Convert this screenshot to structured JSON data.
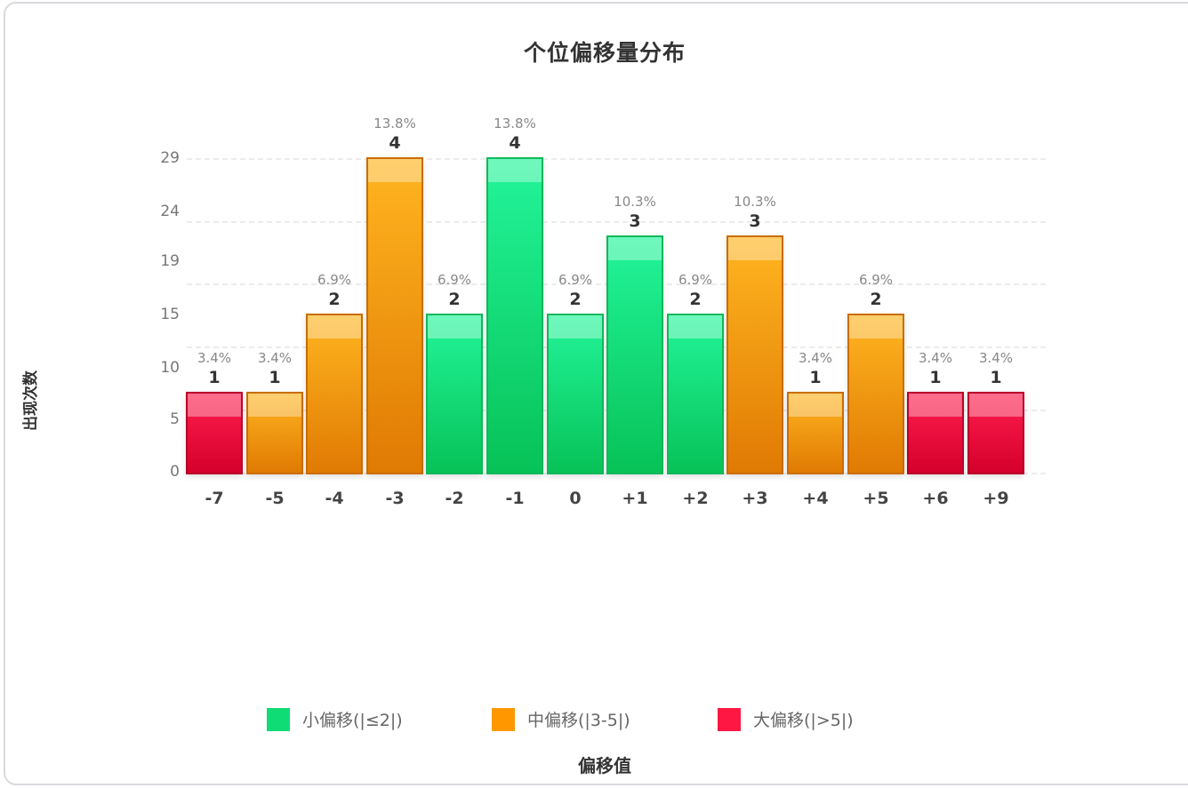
{
  "chart_data": {
    "type": "bar",
    "title": "个位偏移量分布",
    "xlabel": "偏移值",
    "ylabel": "出现次数",
    "categories": [
      "-7",
      "-5",
      "-4",
      "-3",
      "-2",
      "-1",
      "0",
      "+1",
      "+2",
      "+3",
      "+4",
      "+5",
      "+6",
      "+9"
    ],
    "values": [
      1,
      1,
      2,
      4,
      2,
      4,
      2,
      3,
      2,
      3,
      1,
      2,
      1,
      1
    ],
    "percentages": [
      "3.4%",
      "3.4%",
      "6.9%",
      "13.8%",
      "6.9%",
      "13.8%",
      "6.9%",
      "10.3%",
      "6.9%",
      "10.3%",
      "3.4%",
      "6.9%",
      "3.4%",
      "3.4%"
    ],
    "groups": [
      "big",
      "mid",
      "mid",
      "mid",
      "small",
      "small",
      "small",
      "small",
      "small",
      "mid",
      "mid",
      "mid",
      "big",
      "big"
    ],
    "ytick_labels": [
      "0",
      "5",
      "10",
      "15",
      "19",
      "24",
      "29"
    ],
    "grid": true,
    "legend_position": "bottom",
    "legend": [
      {
        "key": "small",
        "label": "小偏移(|≤2|)",
        "color": "#0fdc74"
      },
      {
        "key": "mid",
        "label": "中偏移(|3-5|)",
        "color": "#ff9800"
      },
      {
        "key": "big",
        "label": "大偏移(|>5|)",
        "color": "#ff1744"
      }
    ]
  }
}
